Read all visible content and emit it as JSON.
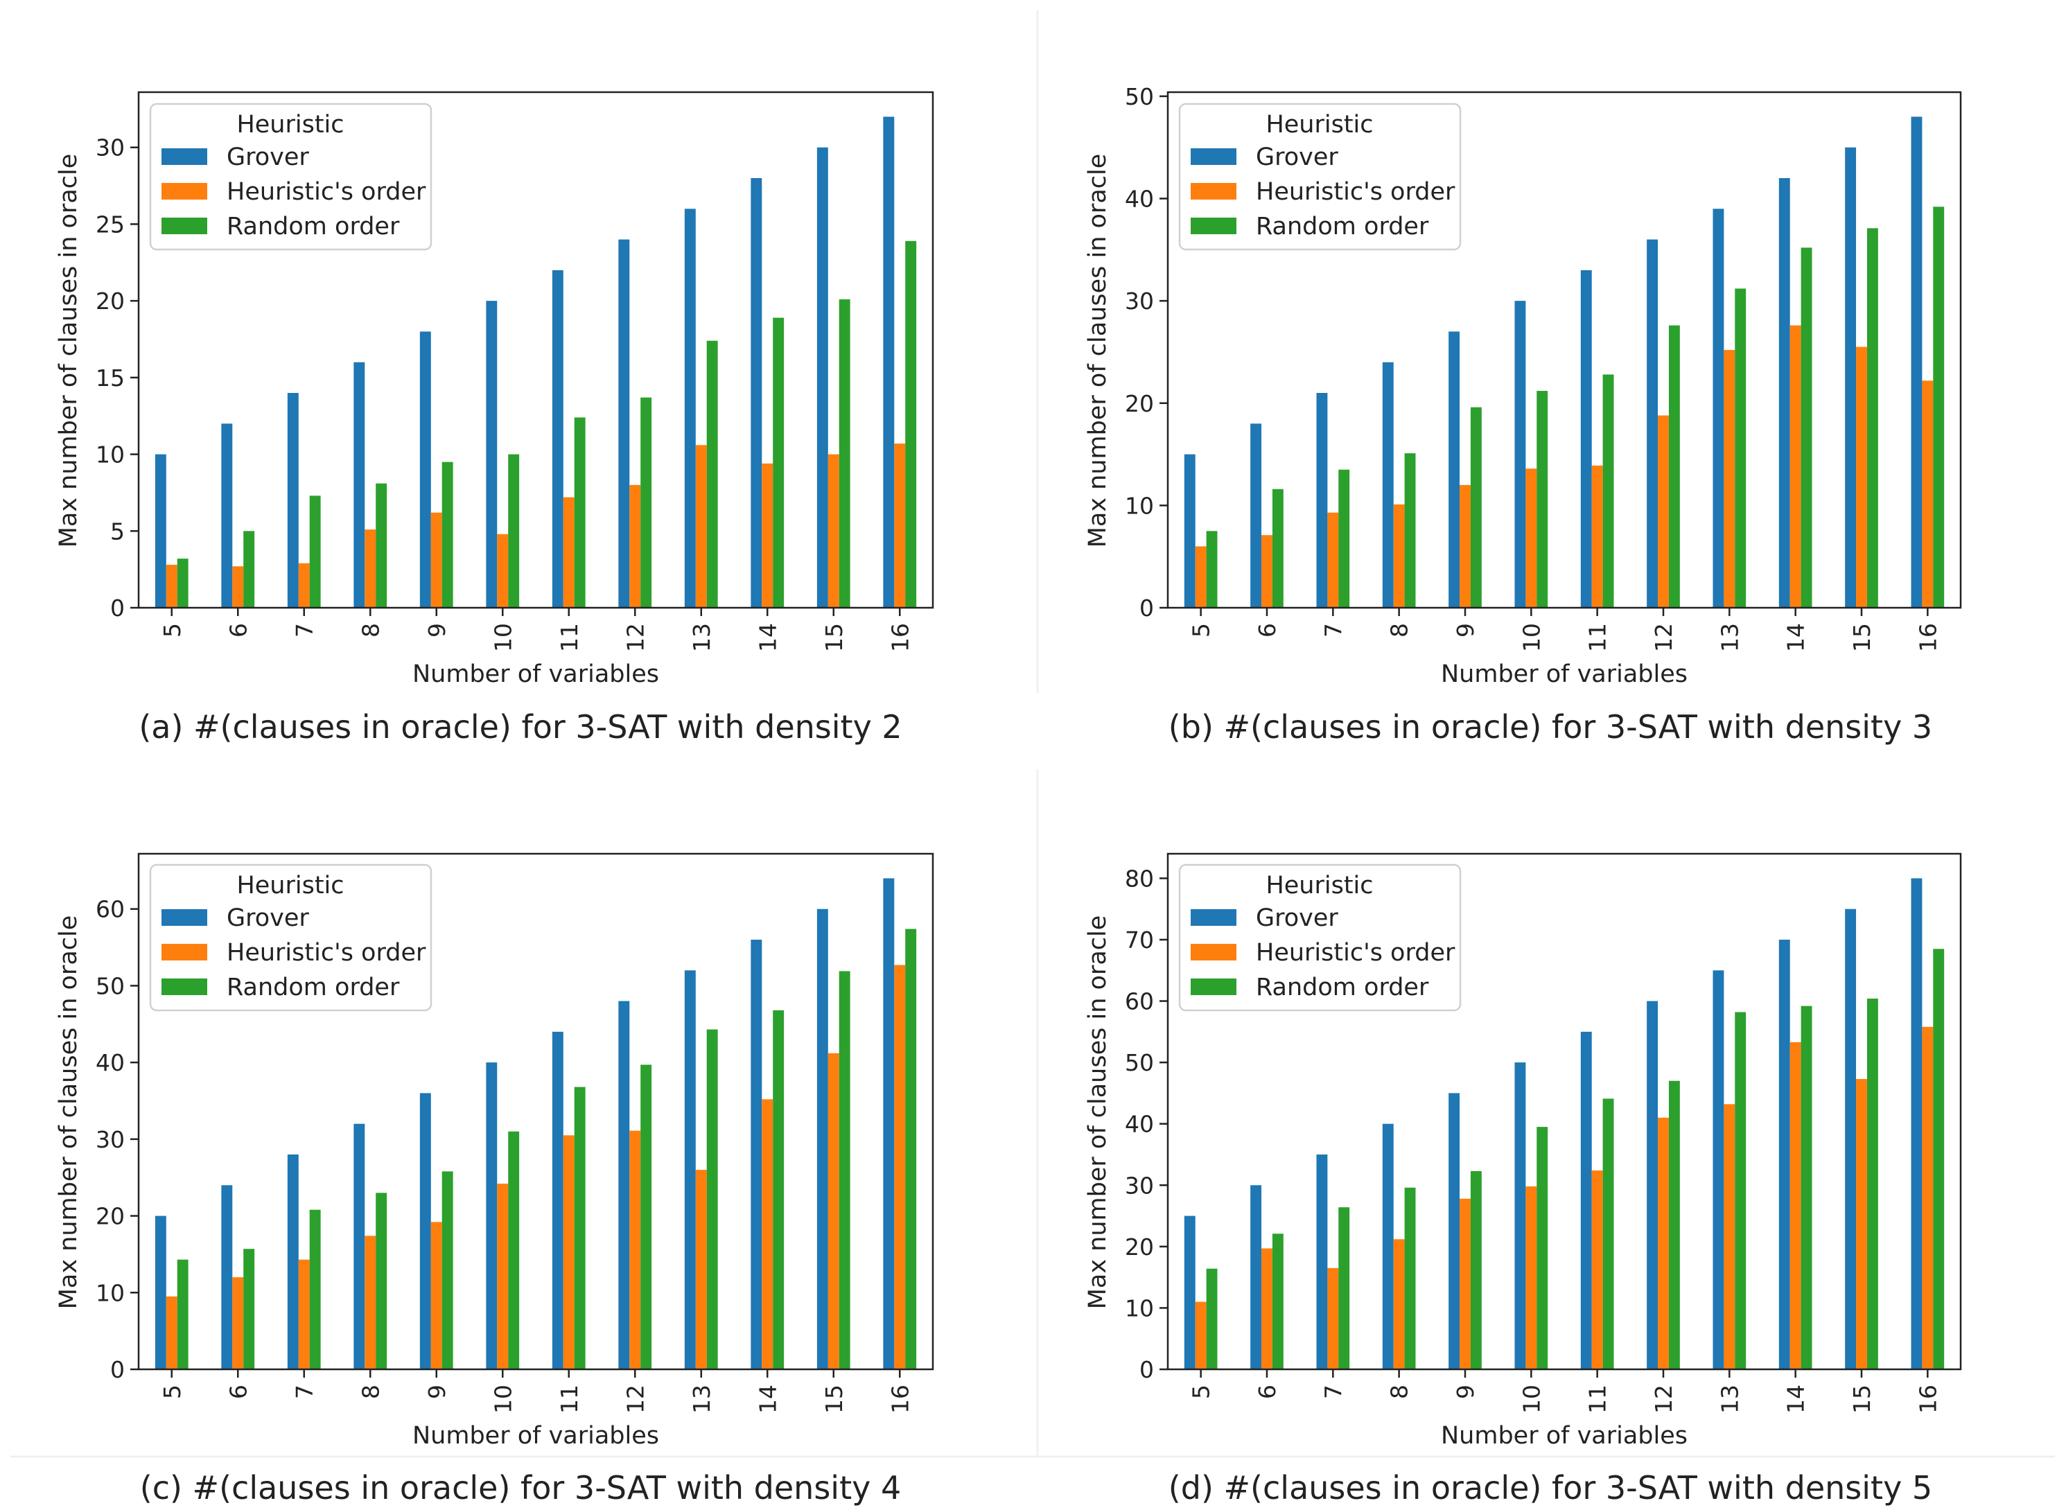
{
  "colors": {
    "grover": "#1f77b4",
    "heuristic": "#ff7f0e",
    "random": "#2ca02c",
    "axis": "#222222"
  },
  "chart_data": [
    {
      "type": "bar",
      "caption": "(a) #(clauses in oracle) for 3-SAT with density 2",
      "xlabel": "Number of variables",
      "ylabel": "Max number of clauses in oracle",
      "categories": [
        "5",
        "6",
        "7",
        "8",
        "9",
        "10",
        "11",
        "12",
        "13",
        "14",
        "15",
        "16"
      ],
      "ylim": [
        0,
        33.6
      ],
      "yticks": [
        0,
        5,
        10,
        15,
        20,
        25,
        30
      ],
      "legend": {
        "title": "Heuristic",
        "position": "top-left"
      },
      "series": [
        {
          "name": "Grover",
          "values": [
            10,
            12,
            14,
            16,
            18,
            20,
            22,
            24,
            26,
            28,
            30,
            32
          ]
        },
        {
          "name": "Heuristic's order",
          "values": [
            2.8,
            2.7,
            2.9,
            5.1,
            6.2,
            4.8,
            7.2,
            8.0,
            10.6,
            9.4,
            10.0,
            10.7
          ]
        },
        {
          "name": "Random order",
          "values": [
            3.2,
            5.0,
            7.3,
            8.1,
            9.5,
            10.0,
            12.4,
            13.7,
            17.4,
            18.9,
            20.1,
            23.9
          ]
        }
      ]
    },
    {
      "type": "bar",
      "caption": "(b) #(clauses in oracle) for 3-SAT with density 3",
      "xlabel": "Number of variables",
      "ylabel": "Max number of clauses in oracle",
      "categories": [
        "5",
        "6",
        "7",
        "8",
        "9",
        "10",
        "11",
        "12",
        "13",
        "14",
        "15",
        "16"
      ],
      "ylim": [
        0,
        50.4
      ],
      "yticks": [
        0,
        10,
        20,
        30,
        40,
        50
      ],
      "legend": {
        "title": "Heuristic",
        "position": "top-left"
      },
      "series": [
        {
          "name": "Grover",
          "values": [
            15,
            18,
            21,
            24,
            27,
            30,
            33,
            36,
            39,
            42,
            45,
            48
          ]
        },
        {
          "name": "Heuristic's order",
          "values": [
            6.0,
            7.1,
            9.3,
            10.1,
            12.0,
            13.6,
            13.9,
            18.8,
            25.2,
            27.6,
            25.5,
            22.2
          ]
        },
        {
          "name": "Random order",
          "values": [
            7.5,
            11.6,
            13.5,
            15.1,
            19.6,
            21.2,
            22.8,
            27.6,
            31.2,
            35.2,
            37.1,
            39.2
          ]
        }
      ]
    },
    {
      "type": "bar",
      "caption": "(c) #(clauses in oracle) for 3-SAT with density 4",
      "xlabel": "Number of variables",
      "ylabel": "Max number of clauses in oracle",
      "categories": [
        "5",
        "6",
        "7",
        "8",
        "9",
        "10",
        "11",
        "12",
        "13",
        "14",
        "15",
        "16"
      ],
      "ylim": [
        0,
        67.2
      ],
      "yticks": [
        0,
        10,
        20,
        30,
        40,
        50,
        60
      ],
      "legend": {
        "title": "Heuristic",
        "position": "top-left"
      },
      "series": [
        {
          "name": "Grover",
          "values": [
            20,
            24,
            28,
            32,
            36,
            40,
            44,
            48,
            52,
            56,
            60,
            64
          ]
        },
        {
          "name": "Heuristic's order",
          "values": [
            9.5,
            12.0,
            14.3,
            17.4,
            19.2,
            24.2,
            30.5,
            31.1,
            26.0,
            35.2,
            41.2,
            52.7
          ]
        },
        {
          "name": "Random order",
          "values": [
            14.3,
            15.7,
            20.8,
            23.0,
            25.8,
            31.0,
            36.8,
            39.7,
            44.3,
            46.8,
            51.9,
            57.4
          ]
        }
      ]
    },
    {
      "type": "bar",
      "caption": "(d) #(clauses in oracle) for 3-SAT with density 5",
      "xlabel": "Number of variables",
      "ylabel": "Max number of clauses in oracle",
      "categories": [
        "5",
        "6",
        "7",
        "8",
        "9",
        "10",
        "11",
        "12",
        "13",
        "14",
        "15",
        "16"
      ],
      "ylim": [
        0,
        84
      ],
      "yticks": [
        0,
        10,
        20,
        30,
        40,
        50,
        60,
        70,
        80
      ],
      "legend": {
        "title": "Heuristic",
        "position": "top-left"
      },
      "series": [
        {
          "name": "Grover",
          "values": [
            25,
            30,
            35,
            40,
            45,
            50,
            55,
            60,
            65,
            70,
            75,
            80
          ]
        },
        {
          "name": "Heuristic's order",
          "values": [
            11.0,
            19.7,
            16.5,
            21.2,
            27.8,
            29.8,
            32.4,
            41.0,
            43.2,
            53.3,
            47.3,
            55.8
          ]
        },
        {
          "name": "Random order",
          "values": [
            16.4,
            22.1,
            26.4,
            29.6,
            32.3,
            39.5,
            44.1,
            47.0,
            58.2,
            59.2,
            60.4,
            68.5
          ]
        }
      ]
    }
  ]
}
